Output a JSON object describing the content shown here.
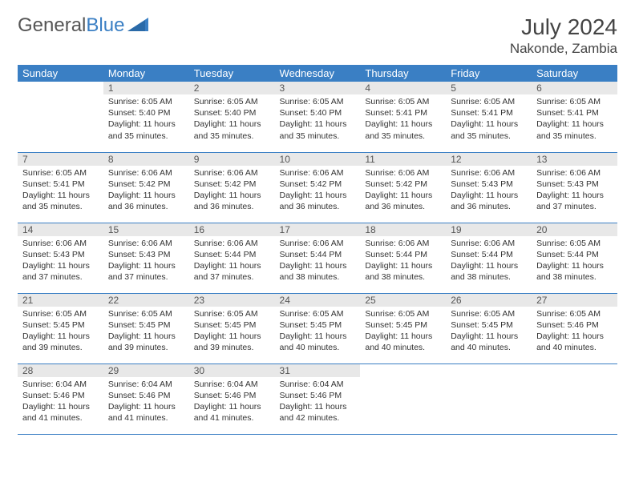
{
  "brand": {
    "part1": "General",
    "part2": "Blue"
  },
  "title": "July 2024",
  "location": "Nakonde, Zambia",
  "colors": {
    "header_bg": "#3a7fc4",
    "header_text": "#ffffff",
    "daynum_bg": "#e8e8e8",
    "text": "#333333",
    "border": "#3a7fc4"
  },
  "weekdays": [
    "Sunday",
    "Monday",
    "Tuesday",
    "Wednesday",
    "Thursday",
    "Friday",
    "Saturday"
  ],
  "weeks": [
    [
      null,
      {
        "n": "1",
        "sr": "Sunrise: 6:05 AM",
        "ss": "Sunset: 5:40 PM",
        "dl": "Daylight: 11 hours and 35 minutes."
      },
      {
        "n": "2",
        "sr": "Sunrise: 6:05 AM",
        "ss": "Sunset: 5:40 PM",
        "dl": "Daylight: 11 hours and 35 minutes."
      },
      {
        "n": "3",
        "sr": "Sunrise: 6:05 AM",
        "ss": "Sunset: 5:40 PM",
        "dl": "Daylight: 11 hours and 35 minutes."
      },
      {
        "n": "4",
        "sr": "Sunrise: 6:05 AM",
        "ss": "Sunset: 5:41 PM",
        "dl": "Daylight: 11 hours and 35 minutes."
      },
      {
        "n": "5",
        "sr": "Sunrise: 6:05 AM",
        "ss": "Sunset: 5:41 PM",
        "dl": "Daylight: 11 hours and 35 minutes."
      },
      {
        "n": "6",
        "sr": "Sunrise: 6:05 AM",
        "ss": "Sunset: 5:41 PM",
        "dl": "Daylight: 11 hours and 35 minutes."
      }
    ],
    [
      {
        "n": "7",
        "sr": "Sunrise: 6:05 AM",
        "ss": "Sunset: 5:41 PM",
        "dl": "Daylight: 11 hours and 35 minutes."
      },
      {
        "n": "8",
        "sr": "Sunrise: 6:06 AM",
        "ss": "Sunset: 5:42 PM",
        "dl": "Daylight: 11 hours and 36 minutes."
      },
      {
        "n": "9",
        "sr": "Sunrise: 6:06 AM",
        "ss": "Sunset: 5:42 PM",
        "dl": "Daylight: 11 hours and 36 minutes."
      },
      {
        "n": "10",
        "sr": "Sunrise: 6:06 AM",
        "ss": "Sunset: 5:42 PM",
        "dl": "Daylight: 11 hours and 36 minutes."
      },
      {
        "n": "11",
        "sr": "Sunrise: 6:06 AM",
        "ss": "Sunset: 5:42 PM",
        "dl": "Daylight: 11 hours and 36 minutes."
      },
      {
        "n": "12",
        "sr": "Sunrise: 6:06 AM",
        "ss": "Sunset: 5:43 PM",
        "dl": "Daylight: 11 hours and 36 minutes."
      },
      {
        "n": "13",
        "sr": "Sunrise: 6:06 AM",
        "ss": "Sunset: 5:43 PM",
        "dl": "Daylight: 11 hours and 37 minutes."
      }
    ],
    [
      {
        "n": "14",
        "sr": "Sunrise: 6:06 AM",
        "ss": "Sunset: 5:43 PM",
        "dl": "Daylight: 11 hours and 37 minutes."
      },
      {
        "n": "15",
        "sr": "Sunrise: 6:06 AM",
        "ss": "Sunset: 5:43 PM",
        "dl": "Daylight: 11 hours and 37 minutes."
      },
      {
        "n": "16",
        "sr": "Sunrise: 6:06 AM",
        "ss": "Sunset: 5:44 PM",
        "dl": "Daylight: 11 hours and 37 minutes."
      },
      {
        "n": "17",
        "sr": "Sunrise: 6:06 AM",
        "ss": "Sunset: 5:44 PM",
        "dl": "Daylight: 11 hours and 38 minutes."
      },
      {
        "n": "18",
        "sr": "Sunrise: 6:06 AM",
        "ss": "Sunset: 5:44 PM",
        "dl": "Daylight: 11 hours and 38 minutes."
      },
      {
        "n": "19",
        "sr": "Sunrise: 6:06 AM",
        "ss": "Sunset: 5:44 PM",
        "dl": "Daylight: 11 hours and 38 minutes."
      },
      {
        "n": "20",
        "sr": "Sunrise: 6:05 AM",
        "ss": "Sunset: 5:44 PM",
        "dl": "Daylight: 11 hours and 38 minutes."
      }
    ],
    [
      {
        "n": "21",
        "sr": "Sunrise: 6:05 AM",
        "ss": "Sunset: 5:45 PM",
        "dl": "Daylight: 11 hours and 39 minutes."
      },
      {
        "n": "22",
        "sr": "Sunrise: 6:05 AM",
        "ss": "Sunset: 5:45 PM",
        "dl": "Daylight: 11 hours and 39 minutes."
      },
      {
        "n": "23",
        "sr": "Sunrise: 6:05 AM",
        "ss": "Sunset: 5:45 PM",
        "dl": "Daylight: 11 hours and 39 minutes."
      },
      {
        "n": "24",
        "sr": "Sunrise: 6:05 AM",
        "ss": "Sunset: 5:45 PM",
        "dl": "Daylight: 11 hours and 40 minutes."
      },
      {
        "n": "25",
        "sr": "Sunrise: 6:05 AM",
        "ss": "Sunset: 5:45 PM",
        "dl": "Daylight: 11 hours and 40 minutes."
      },
      {
        "n": "26",
        "sr": "Sunrise: 6:05 AM",
        "ss": "Sunset: 5:45 PM",
        "dl": "Daylight: 11 hours and 40 minutes."
      },
      {
        "n": "27",
        "sr": "Sunrise: 6:05 AM",
        "ss": "Sunset: 5:46 PM",
        "dl": "Daylight: 11 hours and 40 minutes."
      }
    ],
    [
      {
        "n": "28",
        "sr": "Sunrise: 6:04 AM",
        "ss": "Sunset: 5:46 PM",
        "dl": "Daylight: 11 hours and 41 minutes."
      },
      {
        "n": "29",
        "sr": "Sunrise: 6:04 AM",
        "ss": "Sunset: 5:46 PM",
        "dl": "Daylight: 11 hours and 41 minutes."
      },
      {
        "n": "30",
        "sr": "Sunrise: 6:04 AM",
        "ss": "Sunset: 5:46 PM",
        "dl": "Daylight: 11 hours and 41 minutes."
      },
      {
        "n": "31",
        "sr": "Sunrise: 6:04 AM",
        "ss": "Sunset: 5:46 PM",
        "dl": "Daylight: 11 hours and 42 minutes."
      },
      null,
      null,
      null
    ]
  ]
}
